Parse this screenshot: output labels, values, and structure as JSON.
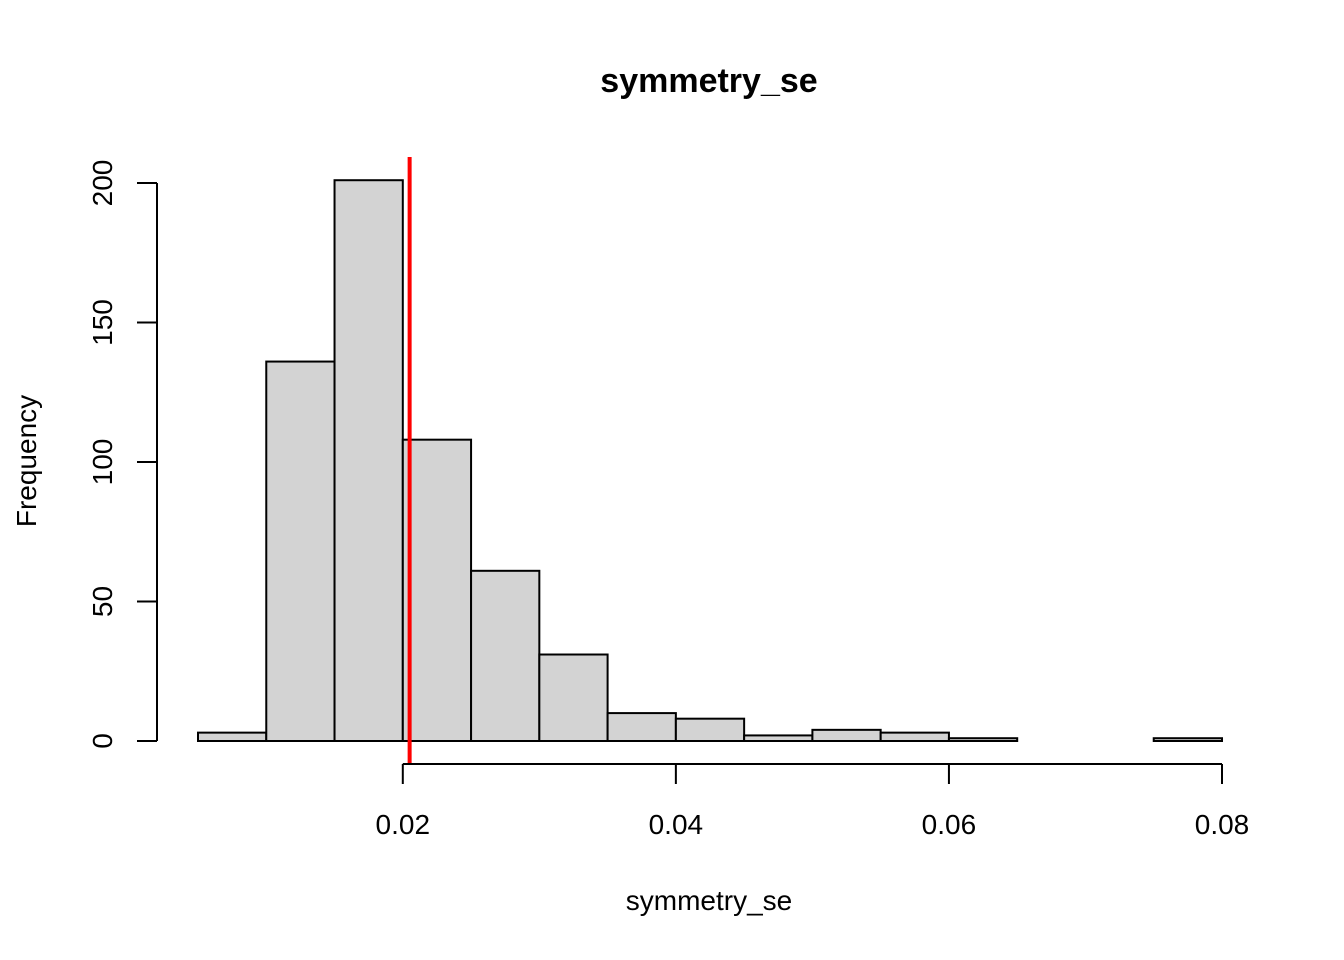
{
  "chart_data": {
    "type": "bar",
    "title": "symmetry_se",
    "xlabel": "symmetry_se",
    "ylabel": "Frequency",
    "bin_edges": [
      0.005,
      0.01,
      0.015,
      0.02,
      0.025,
      0.03,
      0.035,
      0.04,
      0.045,
      0.05,
      0.055,
      0.06,
      0.065,
      0.07,
      0.075,
      0.08
    ],
    "values": [
      3,
      136,
      201,
      108,
      61,
      31,
      10,
      8,
      2,
      4,
      3,
      1,
      0,
      0,
      1
    ],
    "xlim": [
      0.005,
      0.08
    ],
    "ylim": [
      0,
      210
    ],
    "x_ticks": [
      0.02,
      0.04,
      0.06,
      0.08
    ],
    "x_tick_labels": [
      "0.02",
      "0.04",
      "0.06",
      "0.08"
    ],
    "y_ticks": [
      0,
      50,
      100,
      150,
      200
    ],
    "y_tick_labels": [
      "0",
      "50",
      "100",
      "150",
      "200"
    ],
    "bar_color": "#d3d3d3",
    "bar_border_color": "#000000",
    "reference_line": {
      "x": 0.0205,
      "color": "#ff0000"
    },
    "grid": false,
    "legend": "none"
  }
}
